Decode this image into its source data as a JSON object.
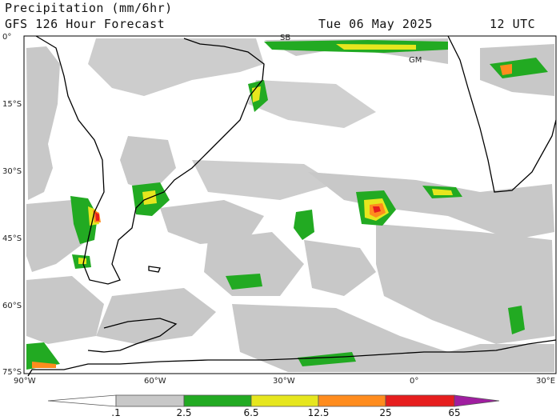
{
  "header": {
    "title_line1": "Precipitation (mm/6hr)",
    "title_line2": "GFS 126 Hour Forecast",
    "valid_date": "Tue 06 May 2025",
    "valid_time": "12 UTC"
  },
  "map": {
    "projection": "lat-lon",
    "lon_range": [
      -90,
      30
    ],
    "lat_range": [
      -75,
      0
    ],
    "lat_labels": [
      "0°",
      "15°S",
      "30°S",
      "45°S",
      "60°S",
      "75°S"
    ],
    "lon_labels": [
      "90°W",
      "60°W",
      "30°W",
      "0°",
      "30°E"
    ],
    "place_labels": [
      "SB",
      "GM"
    ],
    "colors": {
      "land_outline": "#000000",
      "light_precip": "#c8c8c8",
      "green": "#22aa22",
      "yellow": "#e6e61e",
      "orange": "#ff8c1e",
      "red": "#e61e1e",
      "purple": "#a01ea0"
    }
  },
  "colorbar": {
    "thresholds": [
      ".1",
      "2.5",
      "6.5",
      "12.5",
      "25",
      "65"
    ],
    "bin_colors": [
      "#c8c8c8",
      "#22aa22",
      "#e6e61e",
      "#ff8c1e",
      "#e61e1e",
      "#a01ea0"
    ]
  }
}
